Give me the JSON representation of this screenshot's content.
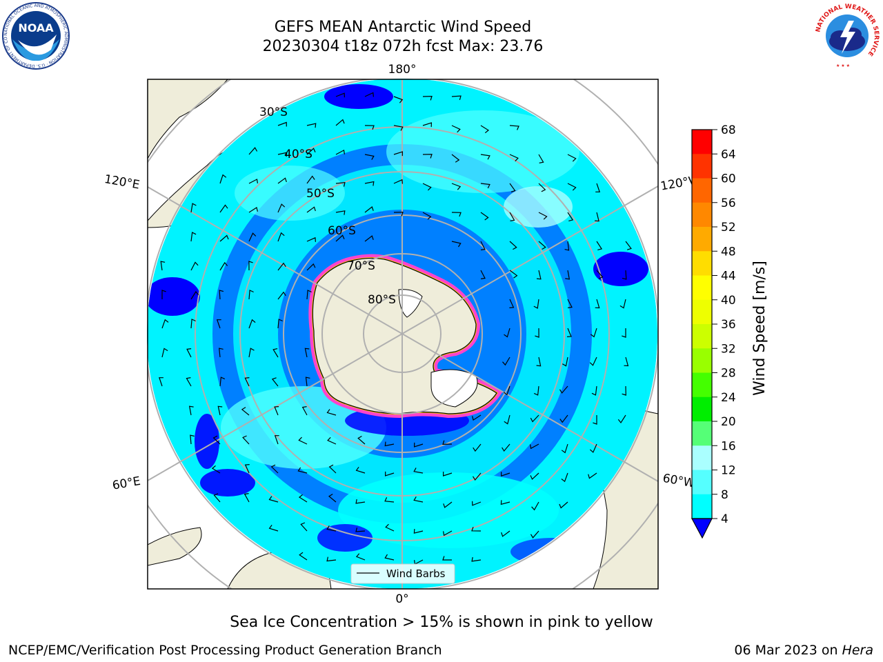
{
  "title": {
    "line1": "GEFS MEAN Antarctic Wind Speed",
    "line2": "20230304 t18z 072h fcst   Max: 23.76"
  },
  "map": {
    "projection": "south-polar-stereographic",
    "longitude_labels": [
      "180°",
      "120°E",
      "120°W",
      "60°E",
      "60°W",
      "0°"
    ],
    "latitude_labels": [
      "30°S",
      "40°S",
      "50°S",
      "60°S",
      "70°S",
      "80°S"
    ],
    "legend_label": "Wind Barbs",
    "colors": {
      "ocean_low": "#0000ff",
      "ocean_mid": "#0080ff",
      "ocean_high": "#00ffff",
      "ocean_top": "#50ffff",
      "land": "#efedda",
      "ice_pink": "#ff44cc",
      "ice_yellow": "#ffcc00"
    }
  },
  "colorbar": {
    "label": "Wind Speed [m/s]",
    "ticks": [
      "68",
      "64",
      "60",
      "56",
      "52",
      "48",
      "44",
      "40",
      "36",
      "32",
      "28",
      "24",
      "20",
      "16",
      "12",
      "8",
      "4"
    ],
    "colors": [
      "#ff0000",
      "#ff3300",
      "#ff6600",
      "#ff8800",
      "#ffaa00",
      "#ffdd00",
      "#ffff00",
      "#eeff00",
      "#ccff00",
      "#99ff00",
      "#44ff00",
      "#00ee00",
      "#55ff77",
      "#aaffff",
      "#55ffff",
      "#00ffff",
      "#0080ff"
    ],
    "extend_color": "#0000ff"
  },
  "caption": "Sea Ice Concentration > 15% is shown in pink to yellow",
  "footer": {
    "left": "NCEP/EMC/Verification Post Processing Product Generation Branch",
    "right_date": "06 Mar 2023 on ",
    "right_host": "Hera"
  },
  "logos": {
    "noaa_text": "NOAA",
    "noaa_ring": "NATIONAL OCEANIC AND ATMOSPHERIC ADMINISTRATION · U.S. DEPARTMENT OF COMMERCE",
    "nws_ring": "NATIONAL WEATHER SERVICE"
  }
}
